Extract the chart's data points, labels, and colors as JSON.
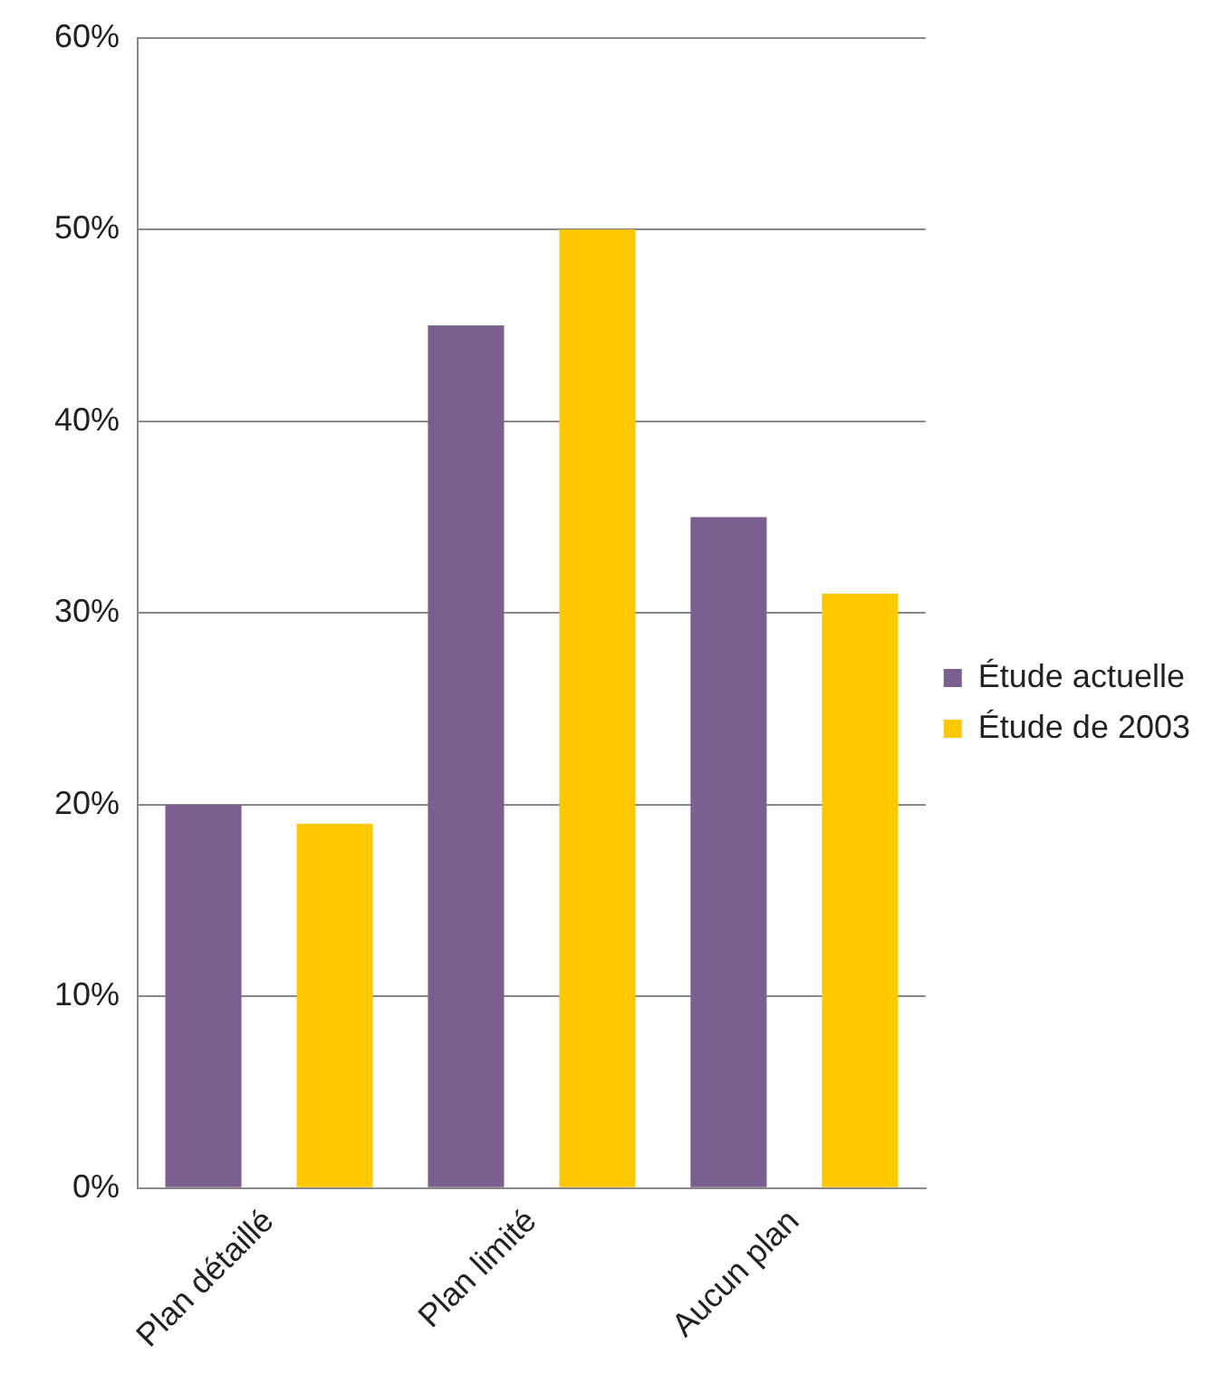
{
  "chart_data": {
    "type": "bar",
    "categories": [
      "Plan détaillé",
      "Plan limité",
      "Aucun plan"
    ],
    "series": [
      {
        "name": "Étude actuelle",
        "color": "#7a5f8f",
        "values": [
          20,
          45,
          35
        ]
      },
      {
        "name": "Étude de 2003",
        "color": "#ffc800",
        "values": [
          19,
          50,
          31
        ]
      }
    ],
    "ylim": [
      0,
      60
    ],
    "yticks": [
      {
        "value": 0,
        "label": "0%"
      },
      {
        "value": 10,
        "label": "10%"
      },
      {
        "value": 20,
        "label": "20%"
      },
      {
        "value": 30,
        "label": "30%"
      },
      {
        "value": 40,
        "label": "40%"
      },
      {
        "value": 50,
        "label": "50%"
      },
      {
        "value": 60,
        "label": "60%"
      }
    ],
    "grid": "y",
    "legend": "right"
  }
}
